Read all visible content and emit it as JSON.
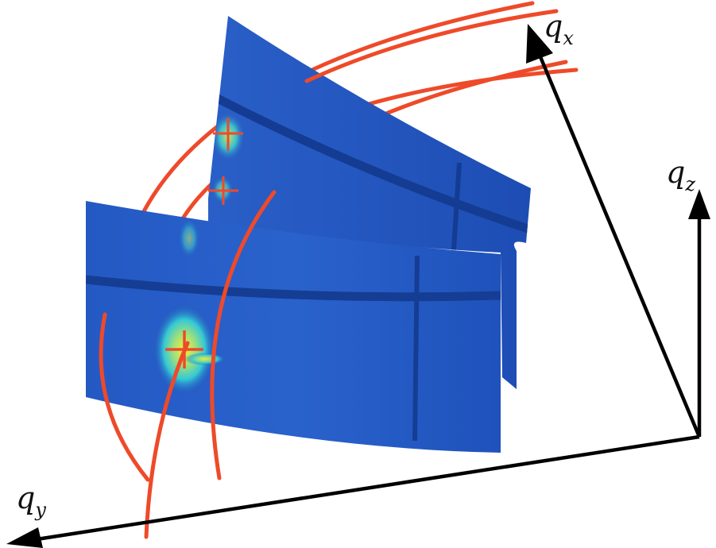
{
  "axes": {
    "qx": {
      "symbol": "q",
      "subscript": "x"
    },
    "qy": {
      "symbol": "q",
      "subscript": "y"
    },
    "qz": {
      "symbol": "q",
      "subscript": "z"
    }
  },
  "colors": {
    "detector_blue": "#1f4fb8",
    "detector_dark": "#143a8f",
    "gap_stripe": "#153d94",
    "trajectory": "#ee4a2a",
    "axis": "#000000",
    "hot_center": "#f2e62a",
    "hot_mid": "#33d6c2"
  }
}
